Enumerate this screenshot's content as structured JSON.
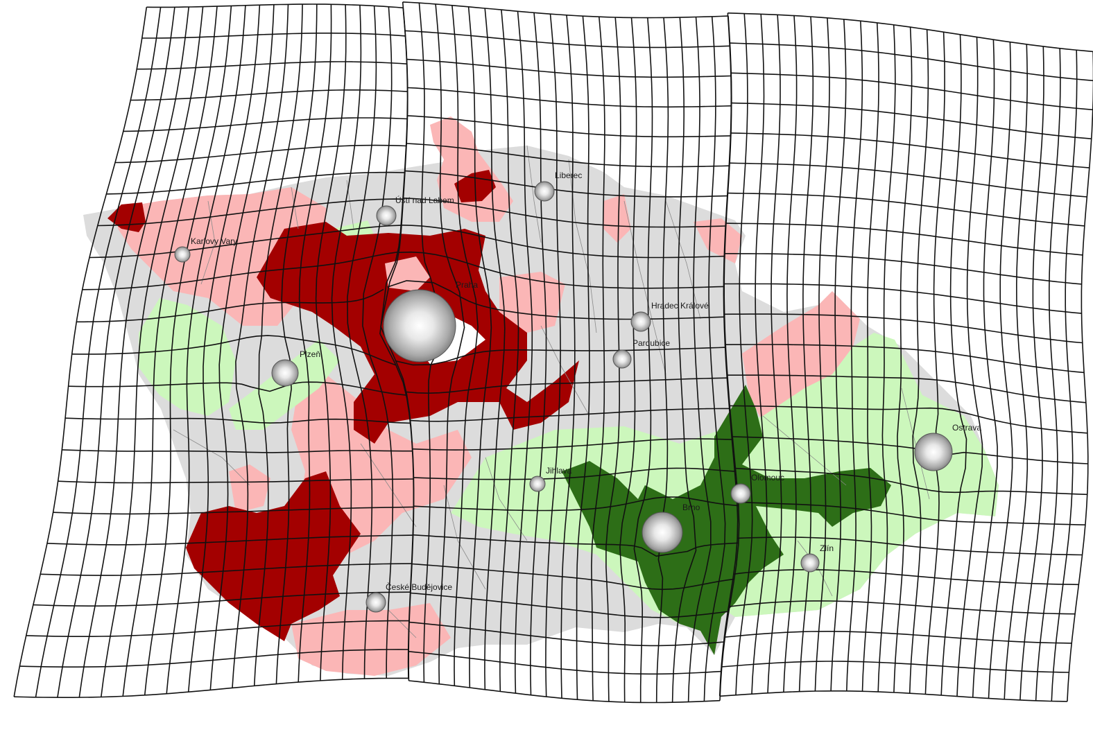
{
  "map": {
    "region_colors": {
      "strong_red": "#a30000",
      "light_red": "#fbb6b6",
      "neutral_gray": "#dcdcdc",
      "light_green": "#ccf7bc",
      "strong_green": "#2d6e17"
    },
    "cities": [
      {
        "id": "praha",
        "label": "Praha",
        "size": "largest"
      },
      {
        "id": "brno",
        "label": "Brno",
        "size": "large"
      },
      {
        "id": "ostrava",
        "label": "Ostrava",
        "size": "large"
      },
      {
        "id": "plzen",
        "label": "Plzeň",
        "size": "medium"
      },
      {
        "id": "liberec",
        "label": "Liberec",
        "size": "small"
      },
      {
        "id": "usti",
        "label": "Ústí nad Labem",
        "size": "small"
      },
      {
        "id": "karlovy-vary",
        "label": "Karlovy Vary",
        "size": "small"
      },
      {
        "id": "hradec-kralove",
        "label": "Hradec Králové",
        "size": "small"
      },
      {
        "id": "pardubice",
        "label": "Pardubice",
        "size": "small"
      },
      {
        "id": "olomouc",
        "label": "Olomouc",
        "size": "small"
      },
      {
        "id": "jihlava",
        "label": "Jihlava",
        "size": "small"
      },
      {
        "id": "zlin",
        "label": "Zlín",
        "size": "small"
      },
      {
        "id": "ceske-budejovice",
        "label": "České Budějovice",
        "size": "small"
      }
    ]
  }
}
